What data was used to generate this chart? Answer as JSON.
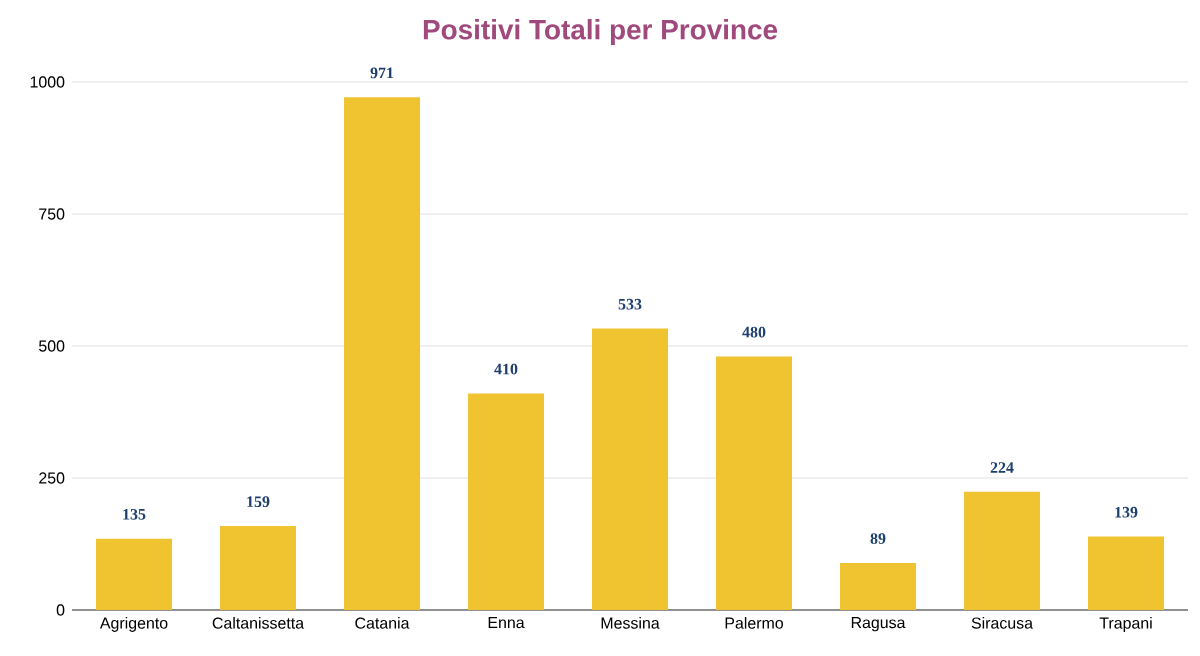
{
  "chart_data": {
    "type": "bar",
    "title": "Positivi Totali per Province",
    "categories": [
      "Agrigento",
      "Caltanissetta",
      "Catania",
      "Enna",
      "Messina",
      "Palermo",
      "Ragusa",
      "Siracusa",
      "Trapani"
    ],
    "values": [
      135,
      159,
      971,
      410,
      533,
      480,
      89,
      224,
      139
    ],
    "color": "#efc430",
    "ylim": [
      0,
      1000
    ],
    "yticks": [
      0,
      250,
      500,
      750,
      1000
    ],
    "grid": "y",
    "data_labels": true
  }
}
